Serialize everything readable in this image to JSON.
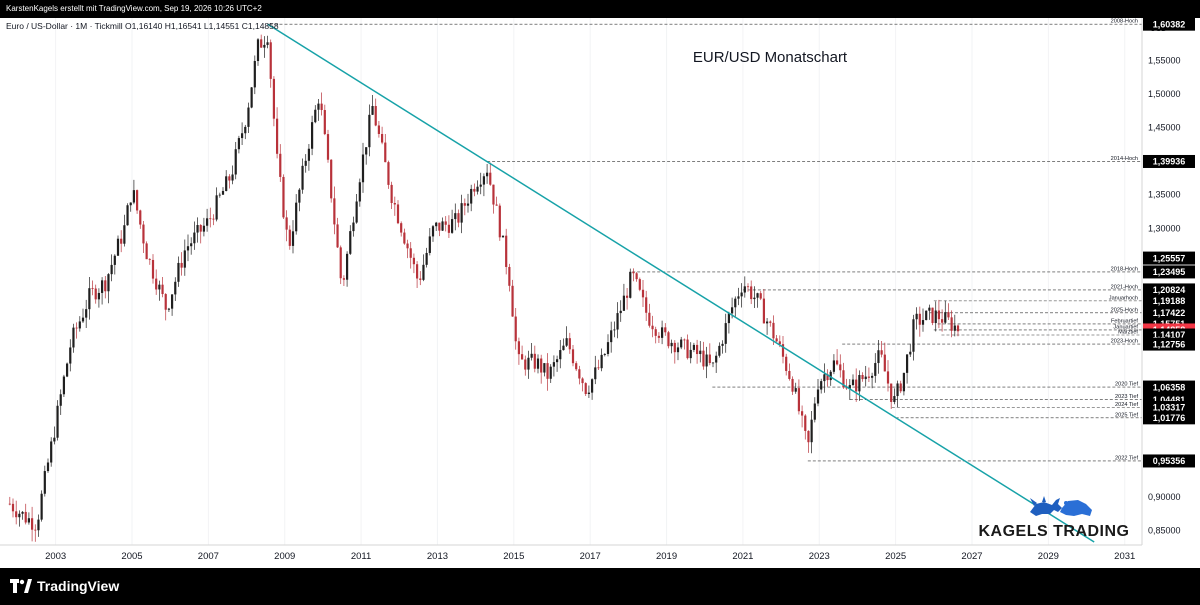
{
  "header": {
    "attribution": "KarstenKagels erstellt mit TradingView.com, Sep 19, 2026 10:26 UTC+2"
  },
  "chart_data": {
    "type": "candlestick",
    "symbol_line": "Euro / US-Dollar · 1M · Tickmill  O1,16140  H1,16541  L1,14551  C1,14858",
    "title": "EUR/USD Monatschart",
    "currency_label": "USD",
    "x_ticks": [
      "2003",
      "2005",
      "2007",
      "2009",
      "2011",
      "2013",
      "2015",
      "2017",
      "2019",
      "2021",
      "2023",
      "2025",
      "2027",
      "2029",
      "2031"
    ],
    "x_tick_years": [
      2003,
      2005,
      2007,
      2009,
      2011,
      2013,
      2015,
      2017,
      2019,
      2021,
      2023,
      2025,
      2027,
      2029,
      2031
    ],
    "x_range": [
      2001.7,
      2031.4
    ],
    "y_ticks": [
      "1,55000",
      "1,50000",
      "1,45000",
      "1,35000",
      "1,30000",
      "0,90000",
      "0,85000"
    ],
    "y_tick_values": [
      1.55,
      1.5,
      1.45,
      1.35,
      1.3,
      0.9,
      0.85
    ],
    "y_range": [
      0.83,
      1.61
    ],
    "candle_up_color": "#1f1f1f",
    "candle_down_color": "#b8323a",
    "trendline_color": "#17a2a8",
    "trendline": {
      "from": {
        "t": 2008.55,
        "price": 1.6038
      },
      "to": {
        "t": 2030.2,
        "price": 0.833
      }
    },
    "levels": [
      {
        "name": "2008-Hoch",
        "value_label": "1,60382",
        "price": 1.6038,
        "t_start": 2008.6,
        "emphasized": false
      },
      {
        "name": "2014-Hoch",
        "value_label": "1,39936",
        "price": 1.3994,
        "t_start": 2014.3,
        "emphasized": false
      },
      {
        "name": "",
        "value_label": "1,25557",
        "price": 1.2556,
        "t_start": null,
        "emphasized": false
      },
      {
        "name": "2018-Hoch",
        "value_label": "1,23495",
        "price": 1.235,
        "t_start": 2018.1,
        "emphasized": false
      },
      {
        "name": "2021-Hoch",
        "value_label": "1,20824",
        "price": 1.2082,
        "t_start": 2021.0,
        "emphasized": false
      },
      {
        "name": "Januarhoch",
        "value_label": "1,19188",
        "price": 1.1919,
        "t_start": 2026.0,
        "emphasized": false
      },
      {
        "name": "2025-Hoch",
        "value_label": "1,17422",
        "price": 1.1742,
        "t_start": 2025.9,
        "emphasized": false
      },
      {
        "name": "Februartief",
        "value_label": "1,15751",
        "price": 1.1575,
        "t_start": 2026.1,
        "emphasized": false
      },
      {
        "name": "Januartief",
        "value_label": "1,14858",
        "price": 1.1486,
        "t_start": 2026.0,
        "emphasized": true
      },
      {
        "name": "Märztief",
        "value_label": "1,14107",
        "price": 1.1411,
        "t_start": 2026.2,
        "emphasized": false
      },
      {
        "name": "2023-Hoch",
        "value_label": "1,12756",
        "price": 1.1276,
        "t_start": 2023.6,
        "emphasized": false
      },
      {
        "name": "2020 Tief",
        "value_label": "1,06358",
        "price": 1.0636,
        "t_start": 2020.2,
        "emphasized": false
      },
      {
        "name": "2023 Tief",
        "value_label": "1,04481",
        "price": 1.0448,
        "t_start": 2023.8,
        "emphasized": false
      },
      {
        "name": "2024 Tief",
        "value_label": "1,03317",
        "price": 1.0332,
        "t_start": 2024.9,
        "emphasized": false
      },
      {
        "name": "2025 Tief",
        "value_label": "1,01776",
        "price": 1.0178,
        "t_start": 2025.0,
        "emphasized": false
      },
      {
        "name": "2022 Tief",
        "value_label": "0,95356",
        "price": 0.9536,
        "t_start": 2022.7,
        "emphasized": false
      }
    ],
    "price_path": [
      [
        2001.8,
        0.89
      ],
      [
        2002.2,
        0.87
      ],
      [
        2002.5,
        0.86
      ],
      [
        2002.9,
        0.98
      ],
      [
        2003.4,
        1.13
      ],
      [
        2003.9,
        1.2
      ],
      [
        2004.3,
        1.22
      ],
      [
        2004.8,
        1.3
      ],
      [
        2005.0,
        1.36
      ],
      [
        2005.4,
        1.26
      ],
      [
        2005.9,
        1.18
      ],
      [
        2006.4,
        1.27
      ],
      [
        2007.0,
        1.31
      ],
      [
        2007.6,
        1.38
      ],
      [
        2008.0,
        1.47
      ],
      [
        2008.3,
        1.57
      ],
      [
        2008.55,
        1.59
      ],
      [
        2008.8,
        1.4
      ],
      [
        2009.1,
        1.27
      ],
      [
        2009.6,
        1.42
      ],
      [
        2009.9,
        1.5
      ],
      [
        2010.2,
        1.36
      ],
      [
        2010.5,
        1.21
      ],
      [
        2010.9,
        1.36
      ],
      [
        2011.3,
        1.48
      ],
      [
        2011.8,
        1.35
      ],
      [
        2012.5,
        1.22
      ],
      [
        2012.9,
        1.3
      ],
      [
        2013.5,
        1.31
      ],
      [
        2014.0,
        1.37
      ],
      [
        2014.3,
        1.39
      ],
      [
        2014.6,
        1.31
      ],
      [
        2014.9,
        1.22
      ],
      [
        2015.1,
        1.1
      ],
      [
        2015.6,
        1.1
      ],
      [
        2015.9,
        1.08
      ],
      [
        2016.4,
        1.13
      ],
      [
        2016.9,
        1.06
      ],
      [
        2017.3,
        1.1
      ],
      [
        2017.8,
        1.18
      ],
      [
        2018.1,
        1.23
      ],
      [
        2018.5,
        1.17
      ],
      [
        2018.9,
        1.14
      ],
      [
        2019.5,
        1.12
      ],
      [
        2019.9,
        1.11
      ],
      [
        2020.2,
        1.09
      ],
      [
        2020.7,
        1.18
      ],
      [
        2021.0,
        1.22
      ],
      [
        2021.4,
        1.19
      ],
      [
        2021.9,
        1.13
      ],
      [
        2022.3,
        1.07
      ],
      [
        2022.7,
        0.97
      ],
      [
        2022.95,
        1.07
      ],
      [
        2023.4,
        1.1
      ],
      [
        2023.8,
        1.06
      ],
      [
        2024.2,
        1.08
      ],
      [
        2024.6,
        1.11
      ],
      [
        2024.95,
        1.04
      ],
      [
        2025.2,
        1.08
      ],
      [
        2025.5,
        1.16
      ],
      [
        2025.9,
        1.17
      ],
      [
        2026.1,
        1.17
      ],
      [
        2026.4,
        1.16
      ],
      [
        2026.67,
        1.149
      ]
    ]
  },
  "watermark": {
    "brand": "KAGELS TRADING"
  },
  "footer": {
    "platform": "TradingView"
  }
}
